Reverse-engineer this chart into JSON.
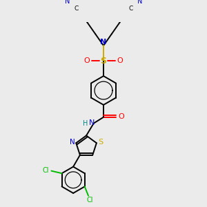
{
  "background_color": "#ebebeb",
  "fig_size": [
    3.0,
    3.0
  ],
  "dpi": 100,
  "atom_colors": {
    "C": "#000000",
    "N": "#0000cc",
    "O": "#ff0000",
    "S": "#ccaa00",
    "Cl": "#00bb00",
    "H": "#008888"
  },
  "bond_color": "#000000",
  "bond_lw": 1.4
}
